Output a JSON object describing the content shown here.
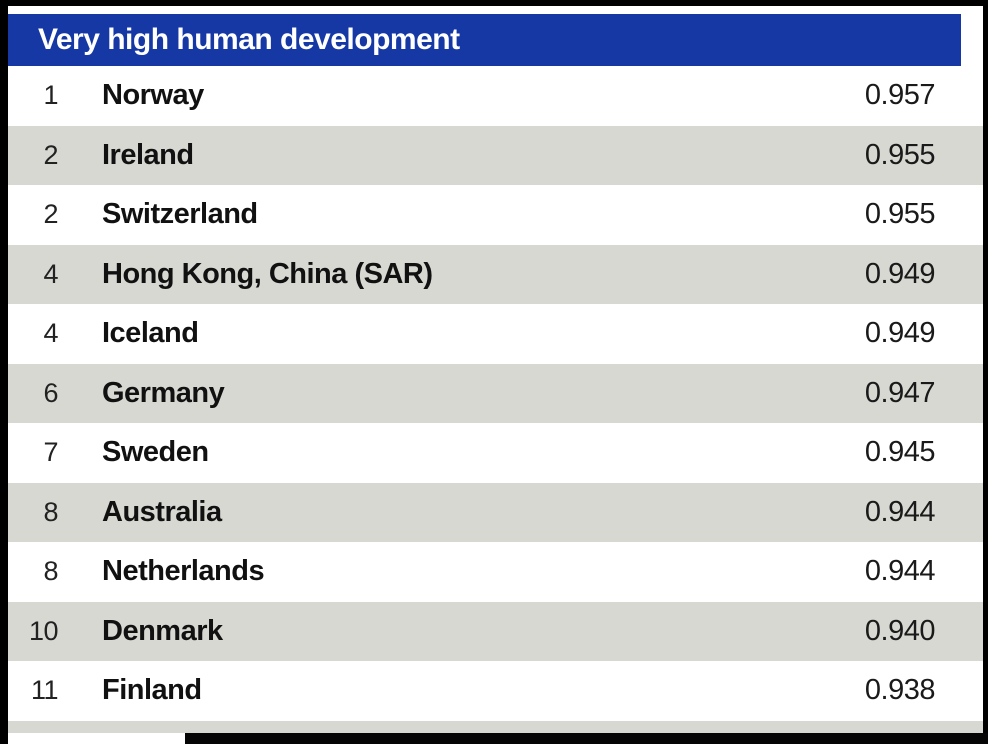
{
  "header": {
    "title": "Very high human development",
    "bg_color": "#1638a5",
    "text_color": "#ffffff"
  },
  "table": {
    "row_alt_color": "#d8d8d3",
    "rows": [
      {
        "rank": "1",
        "country": "Norway",
        "value": "0.957"
      },
      {
        "rank": "2",
        "country": "Ireland",
        "value": "0.955"
      },
      {
        "rank": "2",
        "country": "Switzerland",
        "value": "0.955"
      },
      {
        "rank": "4",
        "country": "Hong Kong, China (SAR)",
        "value": "0.949"
      },
      {
        "rank": "4",
        "country": "Iceland",
        "value": "0.949"
      },
      {
        "rank": "6",
        "country": "Germany",
        "value": "0.947"
      },
      {
        "rank": "7",
        "country": "Sweden",
        "value": "0.945"
      },
      {
        "rank": "8",
        "country": "Australia",
        "value": "0.944"
      },
      {
        "rank": "8",
        "country": "Netherlands",
        "value": "0.944"
      },
      {
        "rank": "10",
        "country": "Denmark",
        "value": "0.940"
      },
      {
        "rank": "11",
        "country": "Finland",
        "value": "0.938"
      }
    ]
  }
}
